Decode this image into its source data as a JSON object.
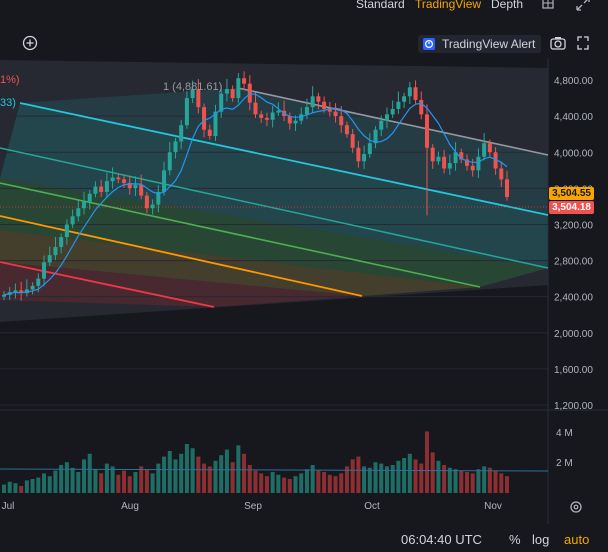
{
  "header": {
    "tabs": [
      {
        "label": "Standard"
      },
      {
        "label": "TradingView",
        "active": true
      },
      {
        "label": "Depth"
      }
    ],
    "alert_label": "TradingView Alert"
  },
  "price_tags": {
    "left_pct": "1%)",
    "left_value": "33)",
    "peak_label": "1 (4,881.61)",
    "current_a": "3,504.55",
    "current_b": "3,504.18"
  },
  "status": {
    "clock": "06:04:40 UTC",
    "pct_label": "%",
    "log_label": "log",
    "auto_label": "auto"
  },
  "colors": {
    "accent": "#f7a600",
    "up": "#26a69a",
    "down": "#ef5350",
    "cyan": "#26c6da",
    "green": "#4caf50",
    "orange": "#ff9800",
    "red": "#f23645",
    "ma": "#2196f3"
  },
  "icons": [
    "grid-icon",
    "fullscreen-icon",
    "plus-circle-icon",
    "alert-icon",
    "camera-icon",
    "settings-icon"
  ],
  "chart_data": {
    "type": "candlestick",
    "x_ticks": [
      "Jul",
      "Aug",
      "Sep",
      "Oct",
      "Nov"
    ],
    "y_ticks": [
      "4,800.00",
      "4,400.00",
      "4,000.00",
      "3,600.00",
      "3,200.00",
      "2,800.00",
      "2,400.00",
      "2,000.00",
      "1,600.00",
      "1,200.00"
    ],
    "ylim": [
      1200,
      5000
    ],
    "volume_ticks": [
      "4 M",
      "2 M"
    ],
    "close_prices": [
      2420,
      2450,
      2470,
      2440,
      2480,
      2520,
      2600,
      2780,
      2860,
      2950,
      3060,
      3200,
      3290,
      3380,
      3450,
      3540,
      3620,
      3560,
      3680,
      3720,
      3700,
      3660,
      3600,
      3640,
      3520,
      3380,
      3420,
      3560,
      3800,
      4000,
      4120,
      4300,
      4600,
      4700,
      4500,
      4250,
      4180,
      4450,
      4650,
      4700,
      4600,
      4820,
      4760,
      4550,
      4420,
      4380,
      4360,
      4440,
      4460,
      4400,
      4320,
      4350,
      4420,
      4500,
      4620,
      4560,
      4480,
      4450,
      4400,
      4300,
      4200,
      4050,
      3900,
      3980,
      4100,
      4250,
      4350,
      4420,
      4480,
      4560,
      4620,
      4720,
      4580,
      4420,
      4050,
      3900,
      3950,
      3820,
      3880,
      4000,
      3920,
      3850,
      3800,
      3950,
      4100,
      4000,
      3820,
      3700,
      3504
    ],
    "volumes": [
      0.6,
      0.8,
      0.7,
      0.5,
      0.9,
      1.0,
      1.1,
      1.4,
      1.2,
      1.6,
      2.0,
      2.2,
      1.8,
      1.5,
      2.4,
      2.8,
      1.7,
      1.4,
      2.1,
      1.9,
      1.3,
      1.6,
      1.2,
      1.5,
      1.9,
      1.7,
      1.4,
      2.1,
      2.6,
      3.0,
      2.4,
      2.8,
      3.5,
      3.2,
      2.6,
      2.1,
      1.9,
      2.3,
      2.7,
      3.1,
      2.2,
      3.4,
      2.8,
      2.0,
      1.6,
      1.4,
      1.2,
      1.5,
      1.3,
      1.1,
      1.0,
      1.2,
      1.4,
      1.7,
      2.0,
      1.6,
      1.5,
      1.3,
      1.2,
      1.4,
      1.9,
      2.4,
      2.6,
      1.9,
      1.8,
      2.2,
      2.1,
      1.9,
      2.0,
      2.3,
      2.5,
      2.8,
      2.4,
      2.1,
      4.4,
      2.9,
      2.3,
      2.0,
      1.8,
      1.7,
      1.6,
      1.5,
      1.4,
      1.7,
      1.9,
      1.8,
      1.6,
      1.4,
      1.2
    ],
    "regression_channel_lines": [
      "cyan",
      "green",
      "orange",
      "red"
    ]
  }
}
